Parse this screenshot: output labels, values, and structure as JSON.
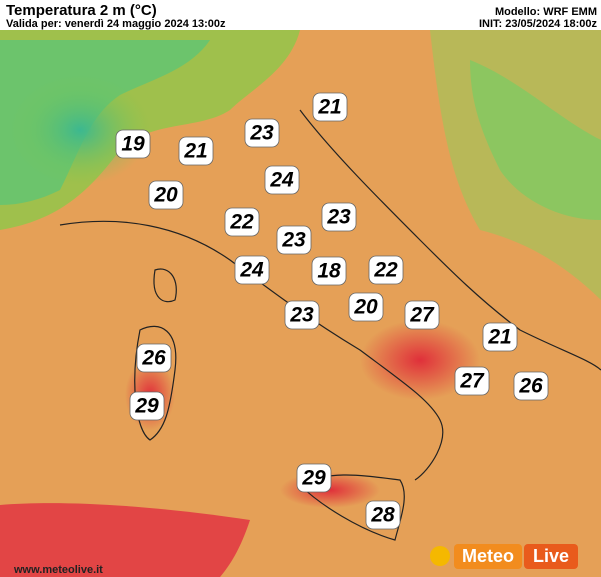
{
  "header": {
    "title": "Temperatura 2 m (°C)",
    "valid": "Valida per: venerdì 24 maggio 2024 13:00z",
    "model": "Modello: WRF EMM",
    "init": "INIT: 23/05/2024 18:00z"
  },
  "labels": [
    21,
    23,
    19,
    21,
    24,
    20,
    22,
    23,
    23,
    24,
    18,
    22,
    20,
    23,
    27,
    21,
    26,
    27,
    26,
    29,
    29,
    28
  ],
  "footer": {
    "site": "www.meteolive.it",
    "logo_a": "Meteo",
    "logo_b": "Live"
  }
}
